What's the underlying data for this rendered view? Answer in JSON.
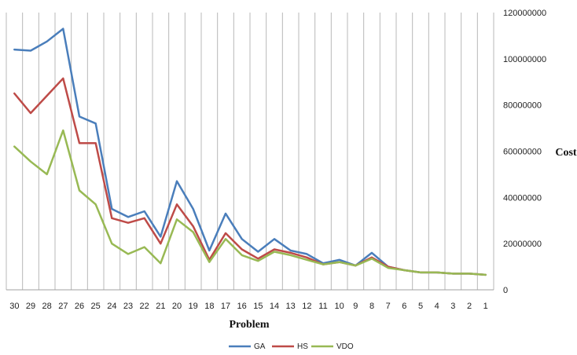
{
  "chart_data": {
    "type": "line",
    "title": "",
    "xlabel": "Problem",
    "ylabel": "Cost",
    "categories": [
      "30",
      "29",
      "28",
      "27",
      "26",
      "25",
      "24",
      "23",
      "22",
      "21",
      "20",
      "19",
      "18",
      "17",
      "16",
      "15",
      "14",
      "13",
      "12",
      "11",
      "10",
      "9",
      "8",
      "7",
      "6",
      "5",
      "4",
      "3",
      "2",
      "1"
    ],
    "ylim": [
      0,
      120000000
    ],
    "yticks": [
      0,
      20000000,
      40000000,
      60000000,
      80000000,
      100000000,
      120000000
    ],
    "y_axis_side": "right",
    "grid": "vertical",
    "legend_position": "bottom",
    "series": [
      {
        "name": "GA",
        "color": "#4a7ebb",
        "values": [
          104000000,
          103500000,
          107500000,
          113000000,
          75000000,
          72000000,
          35000000,
          31500000,
          34000000,
          23000000,
          47000000,
          35000000,
          17000000,
          33000000,
          22000000,
          16500000,
          22000000,
          17000000,
          15500000,
          11500000,
          13000000,
          10500000,
          16000000,
          10000000,
          8500000,
          7500000,
          7500000,
          7000000,
          7000000,
          6500000
        ]
      },
      {
        "name": "HS",
        "color": "#be4b48",
        "values": [
          85000000,
          76500000,
          84000000,
          91500000,
          63500000,
          63500000,
          31000000,
          29000000,
          31000000,
          20000000,
          37000000,
          27500000,
          13000000,
          24500000,
          17500000,
          13500000,
          17500000,
          16000000,
          14000000,
          11000000,
          12000000,
          10500000,
          14000000,
          10000000,
          8500000,
          7500000,
          7500000,
          7000000,
          7000000,
          6500000
        ]
      },
      {
        "name": "VDO",
        "color": "#98b954",
        "values": [
          62000000,
          55500000,
          50000000,
          69000000,
          43000000,
          37000000,
          20000000,
          15500000,
          18500000,
          11500000,
          30500000,
          25000000,
          12000000,
          22000000,
          15000000,
          12500000,
          16500000,
          15000000,
          13000000,
          11000000,
          12000000,
          10500000,
          13500000,
          9500000,
          8500000,
          7500000,
          7500000,
          7000000,
          7000000,
          6500000
        ]
      }
    ]
  }
}
